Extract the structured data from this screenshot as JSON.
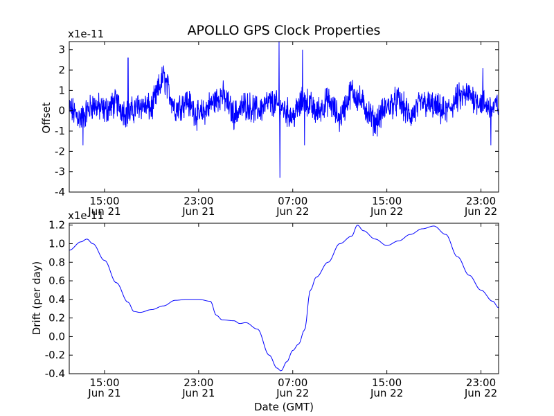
{
  "chart_data": [
    {
      "type": "line",
      "title": "APOLLO GPS Clock Properties",
      "xlabel": "",
      "ylabel": "Offset",
      "y_scale_label": "x1e-11",
      "y_multiplier": 1e-11,
      "ylim": [
        -4,
        3.4
      ],
      "yticks": [
        "3",
        "2",
        "1",
        "0",
        "-1",
        "-2",
        "-3",
        "-4"
      ],
      "xlim": [
        "2011-06-21 12:00",
        "2011-06-23 00:30"
      ],
      "xticks": [
        {
          "value": "2011-06-21 15:00",
          "time": "15:00",
          "date": "Jun 21"
        },
        {
          "value": "2011-06-21 23:00",
          "time": "23:00",
          "date": "Jun 21"
        },
        {
          "value": "2011-06-22 07:00",
          "time": "07:00",
          "date": "Jun 22"
        },
        {
          "value": "2011-06-22 15:00",
          "time": "15:00",
          "date": "Jun 22"
        },
        {
          "value": "2011-06-22 23:00",
          "time": "23:00",
          "date": "Jun 22"
        }
      ],
      "grid": false,
      "series": [
        {
          "color": "#0000ff",
          "x": [
            "2011-06-21 12:00",
            "2011-06-21 13:00",
            "2011-06-21 14:00",
            "2011-06-21 15:00",
            "2011-06-21 16:00",
            "2011-06-21 17:00",
            "2011-06-21 18:00",
            "2011-06-21 19:00",
            "2011-06-21 20:00",
            "2011-06-21 21:00",
            "2011-06-21 22:00",
            "2011-06-21 23:00",
            "2011-06-22 00:00",
            "2011-06-22 01:00",
            "2011-06-22 02:00",
            "2011-06-22 03:00",
            "2011-06-22 04:00",
            "2011-06-22 05:00",
            "2011-06-22 06:00",
            "2011-06-22 07:00",
            "2011-06-22 08:00",
            "2011-06-22 09:00",
            "2011-06-22 10:00",
            "2011-06-22 11:00",
            "2011-06-22 12:00",
            "2011-06-22 13:00",
            "2011-06-22 14:00",
            "2011-06-22 15:00",
            "2011-06-22 16:00",
            "2011-06-22 17:00",
            "2011-06-22 18:00",
            "2011-06-22 19:00",
            "2011-06-22 20:00",
            "2011-06-22 21:00",
            "2011-06-22 22:00",
            "2011-06-22 23:00",
            "2011-06-23 00:00",
            "2011-06-23 00:30"
          ],
          "y": [
            0.1,
            -0.4,
            0.3,
            0.0,
            0.4,
            -0.2,
            0.3,
            0.1,
            1.7,
            0.1,
            0.5,
            -0.3,
            0.3,
            0.8,
            -0.2,
            0.3,
            0.0,
            0.4,
            0.2,
            -0.3,
            0.6,
            -0.1,
            0.5,
            -0.4,
            1.0,
            0.3,
            -0.6,
            0.2,
            0.5,
            -0.3,
            0.4,
            0.2,
            -0.1,
            0.6,
            0.8,
            0.4,
            0.1,
            0.3
          ],
          "excursions": [
            {
              "x": "2011-06-21 13:10",
              "y": -1.7
            },
            {
              "x": "2011-06-21 17:00",
              "y": 2.6
            },
            {
              "x": "2011-06-22 05:50",
              "y": 3.4
            },
            {
              "x": "2011-06-22 05:55",
              "y": -3.3
            },
            {
              "x": "2011-06-22 07:50",
              "y": 3.0
            },
            {
              "x": "2011-06-22 08:00",
              "y": -1.7
            },
            {
              "x": "2011-06-22 23:10",
              "y": 2.1
            },
            {
              "x": "2011-06-22 23:50",
              "y": -1.7
            }
          ]
        }
      ]
    },
    {
      "type": "line",
      "title": "",
      "xlabel": "Date (GMT)",
      "ylabel": "Drift (per day)",
      "y_scale_label": "x1e-11",
      "y_multiplier": 1e-11,
      "ylim": [
        -0.4,
        1.22
      ],
      "yticks": [
        "1.2",
        "1.0",
        "0.8",
        "0.6",
        "0.4",
        "0.2",
        "0.0",
        "-0.2",
        "-0.4"
      ],
      "xlim": [
        "2011-06-21 12:00",
        "2011-06-23 00:30"
      ],
      "xticks": [
        {
          "value": "2011-06-21 15:00",
          "time": "15:00",
          "date": "Jun 21"
        },
        {
          "value": "2011-06-21 23:00",
          "time": "23:00",
          "date": "Jun 21"
        },
        {
          "value": "2011-06-22 07:00",
          "time": "07:00",
          "date": "Jun 22"
        },
        {
          "value": "2011-06-22 15:00",
          "time": "15:00",
          "date": "Jun 22"
        },
        {
          "value": "2011-06-22 23:00",
          "time": "23:00",
          "date": "Jun 22"
        }
      ],
      "grid": false,
      "series": [
        {
          "color": "#0000ff",
          "x": [
            "2011-06-21 12:00",
            "2011-06-21 13:00",
            "2011-06-21 13:30",
            "2011-06-21 14:00",
            "2011-06-21 15:00",
            "2011-06-21 16:00",
            "2011-06-21 17:00",
            "2011-06-21 17:30",
            "2011-06-21 18:00",
            "2011-06-21 19:00",
            "2011-06-21 20:00",
            "2011-06-21 21:00",
            "2011-06-21 22:00",
            "2011-06-21 23:00",
            "2011-06-22 00:00",
            "2011-06-22 00:30",
            "2011-06-22 01:00",
            "2011-06-22 02:00",
            "2011-06-22 02:30",
            "2011-06-22 03:00",
            "2011-06-22 04:00",
            "2011-06-22 05:00",
            "2011-06-22 05:40",
            "2011-06-22 06:00",
            "2011-06-22 06:30",
            "2011-06-22 07:00",
            "2011-06-22 07:30",
            "2011-06-22 08:00",
            "2011-06-22 08:30",
            "2011-06-22 09:00",
            "2011-06-22 10:00",
            "2011-06-22 11:00",
            "2011-06-22 12:00",
            "2011-06-22 12:30",
            "2011-06-22 13:00",
            "2011-06-22 14:00",
            "2011-06-22 15:00",
            "2011-06-22 16:00",
            "2011-06-22 17:00",
            "2011-06-22 18:00",
            "2011-06-22 19:00",
            "2011-06-22 20:00",
            "2011-06-22 21:00",
            "2011-06-22 22:00",
            "2011-06-22 23:00",
            "2011-06-23 00:00",
            "2011-06-23 00:30"
          ],
          "y": [
            0.93,
            1.02,
            1.05,
            1.0,
            0.82,
            0.58,
            0.37,
            0.27,
            0.26,
            0.29,
            0.33,
            0.39,
            0.4,
            0.4,
            0.38,
            0.23,
            0.18,
            0.17,
            0.14,
            0.15,
            0.08,
            -0.2,
            -0.34,
            -0.37,
            -0.27,
            -0.15,
            -0.08,
            0.07,
            0.5,
            0.64,
            0.8,
            1.0,
            1.08,
            1.2,
            1.14,
            1.05,
            0.98,
            1.03,
            1.1,
            1.16,
            1.19,
            1.1,
            0.86,
            0.66,
            0.5,
            0.38,
            0.31
          ]
        }
      ]
    }
  ]
}
